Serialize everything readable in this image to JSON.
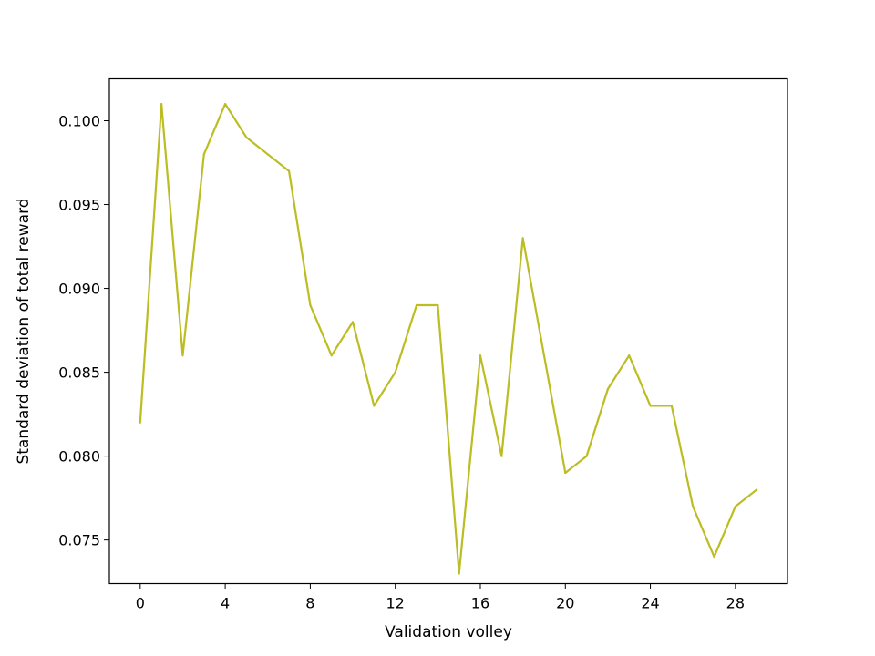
{
  "chart_data": {
    "type": "line",
    "title": "",
    "xlabel": "Validation volley",
    "ylabel": "Standard deviation of total reward",
    "xlim": [
      -1.45,
      30.45
    ],
    "ylim": [
      0.0724,
      0.1025
    ],
    "xticks": [
      0,
      4,
      8,
      12,
      16,
      20,
      24,
      28
    ],
    "xtick_labels": [
      "0",
      "4",
      "8",
      "12",
      "16",
      "20",
      "24",
      "28"
    ],
    "yticks": [
      0.075,
      0.08,
      0.085,
      0.09,
      0.095,
      0.1
    ],
    "ytick_labels": [
      "0.075",
      "0.080",
      "0.085",
      "0.090",
      "0.095",
      "0.100"
    ],
    "grid": false,
    "legend": "none",
    "series": [
      {
        "color": "#bcbd22",
        "x": [
          0,
          1,
          2,
          3,
          4,
          5,
          6,
          7,
          8,
          9,
          10,
          11,
          12,
          13,
          14,
          15,
          16,
          17,
          18,
          19,
          20,
          21,
          22,
          23,
          24,
          25,
          26,
          27,
          28,
          29
        ],
        "values": [
          0.082,
          0.101,
          0.086,
          0.098,
          0.101,
          0.099,
          0.098,
          0.097,
          0.089,
          0.086,
          0.088,
          0.083,
          0.085,
          0.089,
          0.089,
          0.073,
          0.086,
          0.08,
          0.093,
          0.086,
          0.079,
          0.08,
          0.084,
          0.086,
          0.083,
          0.083,
          0.077,
          0.074,
          0.077,
          0.078
        ]
      }
    ]
  }
}
